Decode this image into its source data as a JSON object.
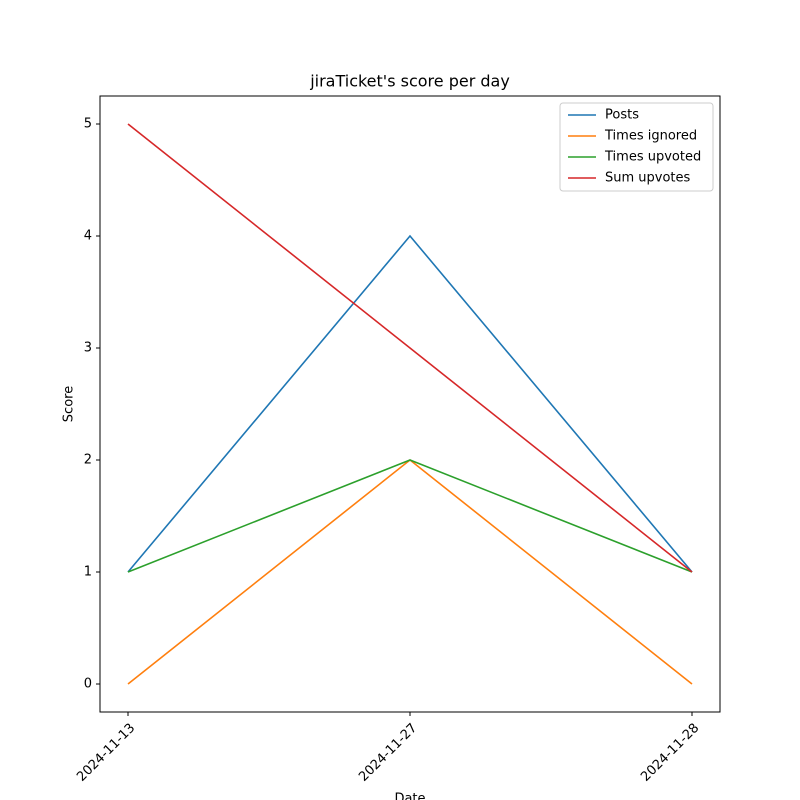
{
  "chart_data": {
    "type": "line",
    "title": "jiraTicket's score per day",
    "x_label": "Date",
    "y_label": "Score",
    "categories": [
      "2024-11-13",
      "2024-11-27",
      "2024-11-28"
    ],
    "series": [
      {
        "name": "Posts",
        "color": "#1f77b4",
        "values": [
          1,
          4,
          1
        ]
      },
      {
        "name": "Times ignored",
        "color": "#ff7f0e",
        "values": [
          0,
          2,
          0
        ]
      },
      {
        "name": "Times upvoted",
        "color": "#2ca02c",
        "values": [
          1,
          2,
          1
        ]
      },
      {
        "name": "Sum upvotes",
        "color": "#d62728",
        "values": [
          5,
          3,
          1
        ]
      }
    ],
    "ylim": [
      -0.25,
      5.25
    ],
    "yticks": [
      0,
      1,
      2,
      3,
      4,
      5
    ],
    "grid": false,
    "legend": "upper right"
  }
}
